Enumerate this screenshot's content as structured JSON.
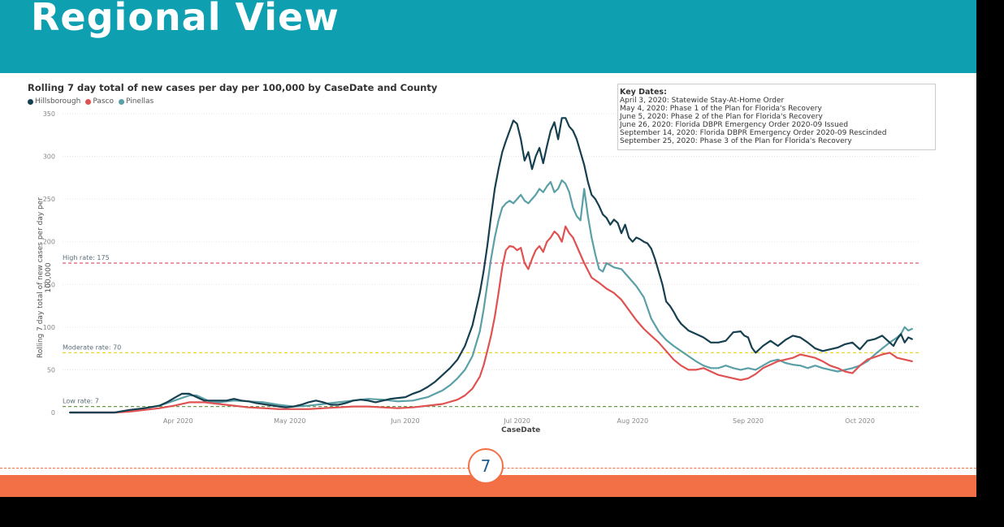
{
  "slide": {
    "title": "Regional View",
    "page_number": "7",
    "colors": {
      "header": "#0e9fb0",
      "footer": "#f36f45"
    }
  },
  "key_dates": {
    "title": "Key Dates:",
    "items": [
      "April 3, 2020: Statewide Stay-At-Home Order",
      "May 4, 2020: Phase 1 of the Plan for Florida's Recovery",
      "June 5, 2020: Phase 2 of the Plan for Florida's Recovery",
      "June 26, 2020: Florida DBPR Emergency Order 2020-09 Issued",
      "September 14, 2020: Florida DBPR Emergency Order 2020-09 Rescinded",
      "September 25, 2020: Phase 3 of the Plan for Florida's Recovery"
    ]
  },
  "chart_data": {
    "type": "line",
    "title": "Rolling 7 day total of new cases per day per 100,000 by CaseDate and County",
    "xlabel": "CaseDate",
    "ylabel": "Rolling 7 day total of new cases per day per 100,000",
    "ylim": [
      0,
      350
    ],
    "yticks": [
      0,
      50,
      100,
      150,
      200,
      250,
      300,
      350
    ],
    "xlim_day": [
      0,
      230
    ],
    "xticks": [
      {
        "label": "Apr 2020",
        "day": 31
      },
      {
        "label": "May 2020",
        "day": 61
      },
      {
        "label": "Jun 2020",
        "day": 92
      },
      {
        "label": "Jul 2020",
        "day": 122
      },
      {
        "label": "Aug 2020",
        "day": 153
      },
      {
        "label": "Sep 2020",
        "day": 184
      },
      {
        "label": "Oct 2020",
        "day": 214
      }
    ],
    "x_note": "x values are days since 2020-03-01",
    "reference_lines": [
      {
        "label": "High rate: 175",
        "value": 175,
        "color": "#e05a6e"
      },
      {
        "label": "Moderate rate: 70",
        "value": 70,
        "color": "#e8d530"
      },
      {
        "label": "Low rate: 7",
        "value": 7,
        "color": "#6a9a4a"
      }
    ],
    "series": [
      {
        "name": "Hillsborough",
        "color": "#163f4f",
        "x": [
          2,
          10,
          14,
          18,
          22,
          26,
          28,
          30,
          32,
          34,
          36,
          38,
          40,
          42,
          44,
          46,
          48,
          50,
          52,
          55,
          58,
          60,
          62,
          64,
          66,
          68,
          70,
          72,
          74,
          76,
          78,
          80,
          82,
          84,
          86,
          88,
          90,
          92,
          94,
          96,
          98,
          100,
          102,
          104,
          106,
          108,
          110,
          112,
          113,
          114,
          115,
          116,
          117,
          118,
          119,
          120,
          121,
          122,
          123,
          124,
          125,
          126,
          127,
          128,
          129,
          130,
          131,
          132,
          133,
          134,
          135,
          136,
          137,
          138,
          139,
          140,
          141,
          142,
          143,
          144,
          145,
          146,
          147,
          148,
          149,
          150,
          151,
          152,
          153,
          154,
          155,
          156,
          157,
          158,
          159,
          160,
          161,
          162,
          163,
          164,
          165,
          166,
          168,
          170,
          172,
          174,
          176,
          178,
          180,
          182,
          183,
          184,
          185,
          186,
          188,
          190,
          192,
          194,
          196,
          198,
          200,
          202,
          204,
          206,
          208,
          210,
          212,
          214,
          216,
          218,
          220,
          222,
          223,
          224,
          225,
          226,
          227,
          228
        ],
        "y": [
          0,
          0,
          0,
          3,
          5,
          8,
          12,
          17,
          22,
          22,
          18,
          14,
          14,
          14,
          14,
          16,
          14,
          13,
          11,
          9,
          7,
          6,
          7,
          9,
          12,
          14,
          12,
          9,
          9,
          11,
          14,
          15,
          14,
          12,
          14,
          16,
          17,
          18,
          22,
          25,
          30,
          36,
          44,
          52,
          62,
          78,
          102,
          140,
          165,
          195,
          230,
          262,
          285,
          305,
          318,
          330,
          342,
          338,
          320,
          295,
          305,
          285,
          300,
          310,
          292,
          312,
          330,
          340,
          320,
          345,
          345,
          335,
          330,
          320,
          305,
          290,
          270,
          255,
          250,
          242,
          232,
          228,
          220,
          226,
          222,
          210,
          220,
          205,
          200,
          205,
          203,
          200,
          198,
          192,
          180,
          165,
          150,
          130,
          125,
          118,
          110,
          104,
          96,
          92,
          88,
          82,
          82,
          84,
          94,
          95,
          90,
          88,
          76,
          70,
          78,
          84,
          78,
          85,
          90,
          88,
          82,
          75,
          72,
          74,
          76,
          80,
          82,
          74,
          84,
          86,
          90,
          82,
          78,
          86,
          92,
          82,
          88,
          86
        ]
      },
      {
        "name": "Pasco",
        "color": "#e05252",
        "x": [
          2,
          14,
          18,
          22,
          26,
          30,
          34,
          38,
          42,
          46,
          50,
          54,
          58,
          62,
          66,
          70,
          74,
          78,
          82,
          86,
          90,
          94,
          98,
          102,
          106,
          108,
          110,
          112,
          113,
          114,
          115,
          116,
          117,
          118,
          119,
          120,
          121,
          122,
          123,
          124,
          125,
          126,
          127,
          128,
          129,
          130,
          131,
          132,
          133,
          134,
          135,
          136,
          137,
          138,
          139,
          140,
          142,
          144,
          146,
          148,
          150,
          152,
          154,
          156,
          158,
          160,
          162,
          164,
          166,
          168,
          170,
          172,
          174,
          176,
          178,
          180,
          182,
          184,
          186,
          188,
          190,
          192,
          194,
          196,
          198,
          200,
          202,
          204,
          206,
          208,
          210,
          212,
          214,
          216,
          218,
          220,
          222,
          224,
          226,
          228
        ],
        "y": [
          0,
          0,
          1,
          3,
          5,
          8,
          12,
          12,
          10,
          8,
          6,
          5,
          4,
          4,
          4,
          5,
          6,
          7,
          7,
          6,
          5,
          6,
          8,
          10,
          15,
          20,
          28,
          42,
          55,
          72,
          90,
          112,
          140,
          170,
          190,
          195,
          194,
          190,
          193,
          175,
          168,
          180,
          190,
          195,
          188,
          200,
          205,
          212,
          208,
          200,
          218,
          210,
          205,
          195,
          185,
          175,
          158,
          152,
          145,
          140,
          132,
          120,
          108,
          98,
          90,
          82,
          72,
          62,
          55,
          50,
          50,
          52,
          48,
          44,
          42,
          40,
          38,
          40,
          45,
          52,
          56,
          60,
          62,
          64,
          68,
          66,
          64,
          60,
          55,
          52,
          48,
          46,
          55,
          62,
          65,
          68,
          70,
          64,
          62,
          60
        ]
      },
      {
        "name": "Pinellas",
        "color": "#5aa0a6",
        "x": [
          2,
          14,
          18,
          22,
          26,
          30,
          34,
          36,
          38,
          40,
          42,
          46,
          50,
          54,
          58,
          62,
          66,
          70,
          74,
          78,
          82,
          86,
          90,
          94,
          98,
          100,
          102,
          104,
          106,
          108,
          110,
          112,
          113,
          114,
          115,
          116,
          117,
          118,
          119,
          120,
          121,
          122,
          123,
          124,
          125,
          126,
          127,
          128,
          129,
          130,
          131,
          132,
          133,
          134,
          135,
          136,
          137,
          138,
          139,
          140,
          141,
          142,
          143,
          144,
          145,
          146,
          148,
          150,
          152,
          154,
          156,
          158,
          160,
          162,
          164,
          166,
          168,
          170,
          172,
          174,
          176,
          178,
          180,
          182,
          184,
          186,
          188,
          190,
          192,
          194,
          196,
          198,
          200,
          202,
          204,
          206,
          208,
          210,
          212,
          214,
          216,
          218,
          220,
          222,
          224,
          225,
          226,
          227,
          228
        ],
        "y": [
          0,
          0,
          2,
          5,
          8,
          14,
          20,
          20,
          16,
          12,
          12,
          14,
          13,
          12,
          9,
          7,
          8,
          10,
          12,
          14,
          16,
          15,
          13,
          14,
          18,
          22,
          26,
          32,
          40,
          50,
          66,
          95,
          120,
          150,
          180,
          205,
          225,
          240,
          245,
          248,
          245,
          250,
          255,
          248,
          245,
          250,
          255,
          262,
          258,
          265,
          270,
          258,
          262,
          272,
          268,
          258,
          240,
          230,
          225,
          262,
          230,
          205,
          185,
          168,
          165,
          175,
          170,
          168,
          158,
          148,
          135,
          110,
          95,
          85,
          78,
          72,
          66,
          60,
          55,
          52,
          52,
          55,
          52,
          50,
          52,
          50,
          55,
          60,
          62,
          58,
          56,
          55,
          52,
          55,
          52,
          50,
          48,
          50,
          52,
          55,
          60,
          68,
          75,
          82,
          88,
          92,
          100,
          96,
          98
        ]
      }
    ]
  }
}
